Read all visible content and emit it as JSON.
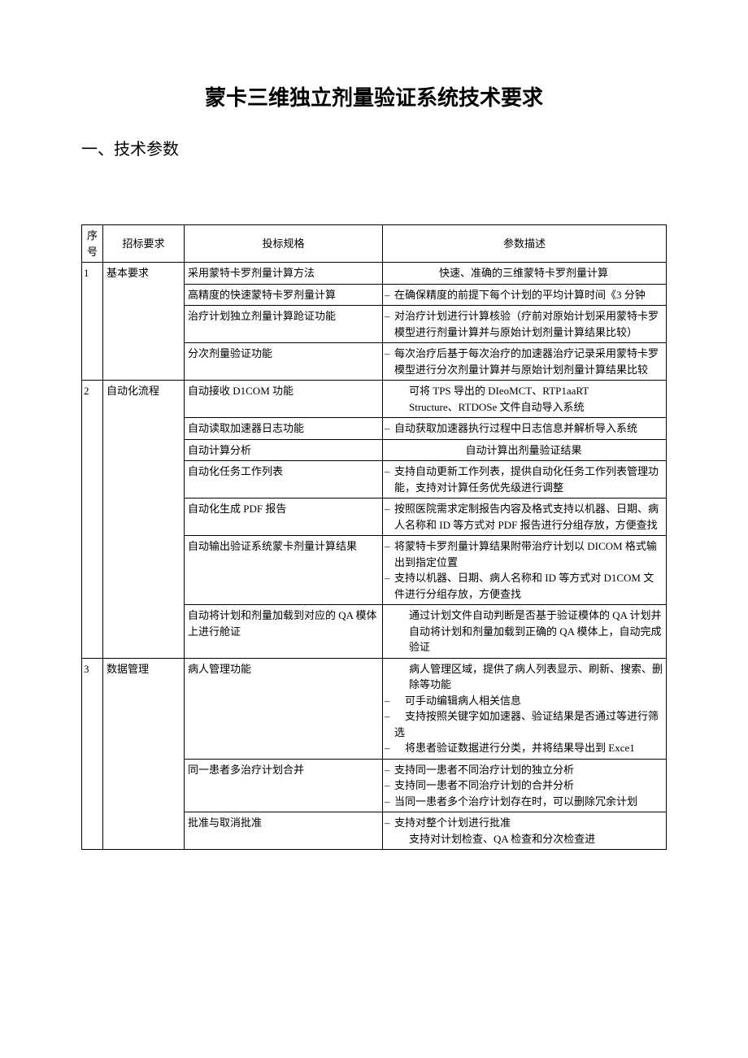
{
  "title": "蒙卡三维独立剂量验证系统技术要求",
  "section_heading": "一、技术参数",
  "table": {
    "columns": [
      "序号",
      "招标要求",
      "投标规格",
      "参数描述"
    ],
    "groups": [
      {
        "seq": "1",
        "req": "基本要求",
        "rows": [
          {
            "spec": "采用蒙特卡罗剂量计算方法",
            "desc": [
              {
                "dash": false,
                "center": true,
                "text": "快速、准确的三维蒙特卡罗剂量计算"
              }
            ]
          },
          {
            "spec": "高精度的快速蒙特卡罗剂量计算",
            "desc": [
              {
                "dash": true,
                "text": "在确保精度的前提下每个计划的平均计算时间《3 分钟"
              }
            ]
          },
          {
            "spec": "治疗计划独立剂量计算跄证功能",
            "desc": [
              {
                "dash": true,
                "text": "对治疗计划进行计算核验（疗前对原始计划采用蒙特卡罗模型进行剂量计算并与原始计划剂量计算结果比较）"
              }
            ]
          },
          {
            "spec": "分次剂量验证功能",
            "desc": [
              {
                "dash": true,
                "text": "每次治疗后基于每次治疗的加速器治疗记录采用蒙特卡罗模型进行分次剂量计算并与原始计划剂量计算结果比较"
              }
            ]
          }
        ]
      },
      {
        "seq": "2",
        "req": "自动化流程",
        "rows": [
          {
            "spec": "自动接收 D1COM 功能",
            "desc": [
              {
                "dash": false,
                "indent": true,
                "text": "可将 TPS 导出的 DIeoMCT、RTP1aaRT"
              },
              {
                "dash": false,
                "indent": true,
                "text": "Structure、RTDOSe 文件自动导入系统"
              }
            ]
          },
          {
            "spec": "自动读取加速器日志功能",
            "desc": [
              {
                "dash": true,
                "text": "自动获取加速器执行过程中日志信息并解析导入系统"
              }
            ]
          },
          {
            "spec": "自动计算分析",
            "desc": [
              {
                "dash": false,
                "center": true,
                "text": "自动计算出剂量验证结果"
              }
            ]
          },
          {
            "spec": "自动化任务工作列表",
            "desc": [
              {
                "dash": true,
                "text": "支持自动更新工作列表，提供自动化任务工作列表管理功能，支持对计算任务优先级进行调整"
              }
            ]
          },
          {
            "spec": "自动化生成 PDF 报告",
            "desc": [
              {
                "dash": true,
                "text": "按照医院需求定制报告内容及格式支持以机器、日期、病人名称和 ID 等方式对 PDF 报告进行分组存放，方便查找"
              }
            ]
          },
          {
            "spec": "自动输出验证系统蒙卡剂量计算结果",
            "desc": [
              {
                "dash": true,
                "text": "将蒙特卡罗剂量计算结果附带治疗计划以 DICOM 格式输出到指定位置"
              },
              {
                "dash": true,
                "text": "支持以机器、日期、病人名称和 ID 等方式对 D1COM 文件进行分组存放，方便查找"
              }
            ]
          },
          {
            "spec": "自动将计划和剂量加载到对应的 QA 模体上进行舱证",
            "desc": [
              {
                "dash": false,
                "indent": true,
                "text": "通过计划文件自动判断是否基于验证模体的 QA 计划并自动将计划和剂量加载到正确的 QA 模体上，自动完成验证"
              }
            ]
          }
        ]
      },
      {
        "seq": "3",
        "req": "数据管理",
        "rows": [
          {
            "spec": "病人管理功能",
            "desc": [
              {
                "dash": false,
                "indent": true,
                "text": "病人管理区域，提供了病人列表显示、刷新、搜索、删除等功能"
              },
              {
                "dash": true,
                "text": "　可手动编辑病人相关信息"
              },
              {
                "dash": true,
                "text": "　支持按照关键字如加速器、验证结果是否通过等进行筛选"
              },
              {
                "dash": true,
                "text": "　将患者验证数据进行分类，并将结果导出到 Exce1"
              }
            ]
          },
          {
            "spec": "同一患者多治疗计划合并",
            "desc": [
              {
                "dash": true,
                "text": "支持同一患者不同治疗计划的独立分析"
              },
              {
                "dash": true,
                "text": "支持同一患者不同治疗计划的合并分析"
              },
              {
                "dash": true,
                "text": "当同一患者多个治疗计划存在时，可以删除冗余计划"
              }
            ]
          },
          {
            "spec": "批准与取消批准",
            "desc": [
              {
                "dash": true,
                "text": "支持对整个计划进行批准"
              },
              {
                "dash": false,
                "indent": true,
                "text": "支持对计划检查、QA 检查和分次检查进"
              }
            ]
          }
        ]
      }
    ]
  }
}
